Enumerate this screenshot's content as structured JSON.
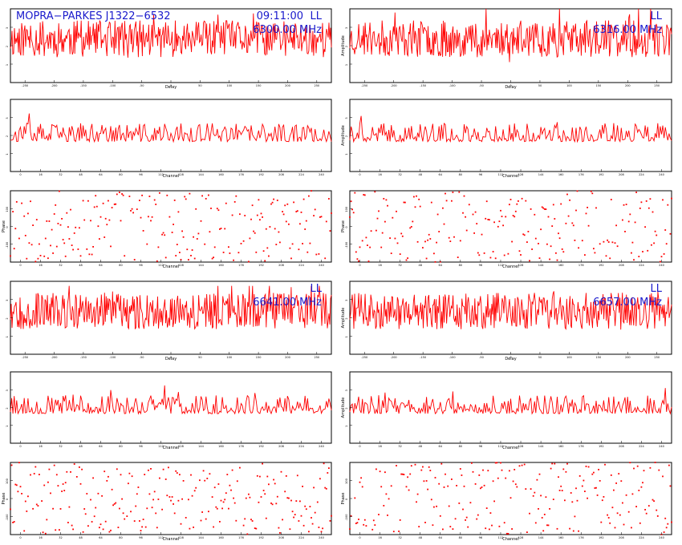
{
  "title": "MOPRA−PARKES J1322−6532",
  "time": "09:11:00",
  "trace_color": "#ff0000",
  "frame_color": "#000000",
  "annotation_color": "#1a1acc",
  "chart_data": [
    {
      "type": "line",
      "panel": "amplitude-vs-delay",
      "polarization": "LL",
      "frequency": "6300.00 MHz",
      "xlabel": "Delay",
      "ylabel": "",
      "xlim": [
        -260,
        260
      ],
      "ylim": [
        0,
        3.2
      ],
      "x_ticks": [
        "-250",
        "-200",
        "-150",
        "-100",
        "-50",
        "0",
        "50",
        "100",
        "150",
        "200",
        "250"
      ],
      "y_ticks": [
        "1",
        "2",
        "3"
      ],
      "n_points": 400,
      "value_range": [
        0.8,
        3.0
      ],
      "seed": 11
    },
    {
      "type": "line",
      "panel": "amplitude-vs-delay",
      "polarization": "LL",
      "frequency": "6316.00 MHz",
      "xlabel": "Delay",
      "ylabel": "Amplitude",
      "xlim": [
        -260,
        260
      ],
      "ylim": [
        0,
        3.2
      ],
      "x_ticks": [
        "-250",
        "-200",
        "-150",
        "-100",
        "-50",
        "0",
        "50",
        "100",
        "150",
        "200",
        "250"
      ],
      "y_ticks": [
        "1",
        "2",
        "3"
      ],
      "n_points": 400,
      "value_range": [
        0.6,
        3.2
      ],
      "seed": 23
    },
    {
      "type": "line",
      "panel": "amplitude-vs-channel",
      "xlabel": "Channel",
      "ylabel": "",
      "xlim": [
        0,
        257
      ],
      "ylim": [
        0,
        3.5
      ],
      "x_ticks": [
        "0",
        "16",
        "32",
        "48",
        "64",
        "80",
        "96",
        "112",
        "128",
        "144",
        "160",
        "176",
        "192",
        "208",
        "224",
        "240"
      ],
      "y_ticks": [
        "1",
        "2",
        "3"
      ],
      "n_points": 257,
      "value_range": [
        1.0,
        3.2
      ],
      "seed": 37
    },
    {
      "type": "line",
      "panel": "amplitude-vs-channel",
      "xlabel": "Channel",
      "ylabel": "Amplitude",
      "xlim": [
        0,
        257
      ],
      "ylim": [
        0,
        3.5
      ],
      "x_ticks": [
        "0",
        "16",
        "32",
        "48",
        "64",
        "80",
        "96",
        "112",
        "128",
        "144",
        "160",
        "176",
        "192",
        "208",
        "224",
        "240"
      ],
      "y_ticks": [
        "1",
        "2",
        "3"
      ],
      "n_points": 257,
      "value_range": [
        1.0,
        3.2
      ],
      "seed": 41
    },
    {
      "type": "scatter",
      "panel": "phase-vs-channel",
      "xlabel": "Channel",
      "ylabel": "Phase",
      "xlim": [
        0,
        257
      ],
      "ylim": [
        -180,
        180
      ],
      "x_ticks": [
        "0",
        "16",
        "32",
        "48",
        "64",
        "80",
        "96",
        "112",
        "128",
        "144",
        "160",
        "176",
        "192",
        "208",
        "224",
        "240"
      ],
      "y_ticks": [
        "-100",
        "0",
        "100"
      ],
      "n_points": 257,
      "seed": 53
    },
    {
      "type": "scatter",
      "panel": "phase-vs-channel",
      "xlabel": "Channel",
      "ylabel": "Phase",
      "xlim": [
        0,
        257
      ],
      "ylim": [
        -180,
        180
      ],
      "x_ticks": [
        "0",
        "16",
        "32",
        "48",
        "64",
        "80",
        "96",
        "112",
        "128",
        "144",
        "160",
        "176",
        "192",
        "208",
        "224",
        "240"
      ],
      "y_ticks": [
        "-100",
        "0",
        "100"
      ],
      "n_points": 257,
      "seed": 59
    },
    {
      "type": "line",
      "panel": "amplitude-vs-delay",
      "polarization": "LL",
      "frequency": "6641.00 MHz",
      "xlabel": "Delay",
      "ylabel": "",
      "xlim": [
        -260,
        260
      ],
      "ylim": [
        0,
        3.2
      ],
      "x_ticks": [
        "-250",
        "-200",
        "-150",
        "-100",
        "-50",
        "0",
        "50",
        "100",
        "150",
        "200",
        "250"
      ],
      "y_ticks": [
        "1",
        "2",
        "3"
      ],
      "n_points": 400,
      "value_range": [
        0.8,
        3.0
      ],
      "seed": 67
    },
    {
      "type": "line",
      "panel": "amplitude-vs-delay",
      "polarization": "LL",
      "frequency": "6657.00 MHz",
      "xlabel": "Delay",
      "ylabel": "Amplitude",
      "xlim": [
        -260,
        260
      ],
      "ylim": [
        0,
        3.2
      ],
      "x_ticks": [
        "-250",
        "-200",
        "-150",
        "-100",
        "-50",
        "0",
        "50",
        "100",
        "150",
        "200",
        "250"
      ],
      "y_ticks": [
        "1",
        "2",
        "3"
      ],
      "n_points": 400,
      "value_range": [
        0.8,
        3.0
      ],
      "seed": 71
    },
    {
      "type": "line",
      "panel": "amplitude-vs-channel",
      "xlabel": "Channel",
      "ylabel": "",
      "xlim": [
        0,
        257
      ],
      "ylim": [
        0,
        3.5
      ],
      "x_ticks": [
        "0",
        "16",
        "32",
        "48",
        "64",
        "80",
        "96",
        "112",
        "128",
        "144",
        "160",
        "176",
        "192",
        "208",
        "224",
        "240"
      ],
      "y_ticks": [
        "1",
        "2",
        "3"
      ],
      "n_points": 257,
      "value_range": [
        1.0,
        3.2
      ],
      "seed": 79
    },
    {
      "type": "line",
      "panel": "amplitude-vs-channel",
      "xlabel": "Channel",
      "ylabel": "Amplitude",
      "xlim": [
        0,
        257
      ],
      "ylim": [
        0,
        3.5
      ],
      "x_ticks": [
        "0",
        "16",
        "32",
        "48",
        "64",
        "80",
        "96",
        "112",
        "128",
        "144",
        "160",
        "176",
        "192",
        "208",
        "224",
        "240"
      ],
      "y_ticks": [
        "1",
        "2",
        "3"
      ],
      "n_points": 257,
      "value_range": [
        1.0,
        3.2
      ],
      "seed": 83
    },
    {
      "type": "scatter",
      "panel": "phase-vs-channel",
      "xlabel": "Channel",
      "ylabel": "Phase",
      "xlim": [
        0,
        257
      ],
      "ylim": [
        -180,
        180
      ],
      "x_ticks": [
        "0",
        "16",
        "32",
        "48",
        "64",
        "80",
        "96",
        "112",
        "128",
        "144",
        "160",
        "176",
        "192",
        "208",
        "224",
        "240"
      ],
      "y_ticks": [
        "-100",
        "0",
        "100"
      ],
      "n_points": 257,
      "seed": 89
    },
    {
      "type": "scatter",
      "panel": "phase-vs-channel",
      "xlabel": "Channel",
      "ylabel": "Phase",
      "xlim": [
        0,
        257
      ],
      "ylim": [
        -180,
        180
      ],
      "x_ticks": [
        "0",
        "16",
        "32",
        "48",
        "64",
        "80",
        "96",
        "112",
        "128",
        "144",
        "160",
        "176",
        "192",
        "208",
        "224",
        "240"
      ],
      "y_ticks": [
        "-100",
        "0",
        "100"
      ],
      "n_points": 257,
      "seed": 97
    }
  ]
}
